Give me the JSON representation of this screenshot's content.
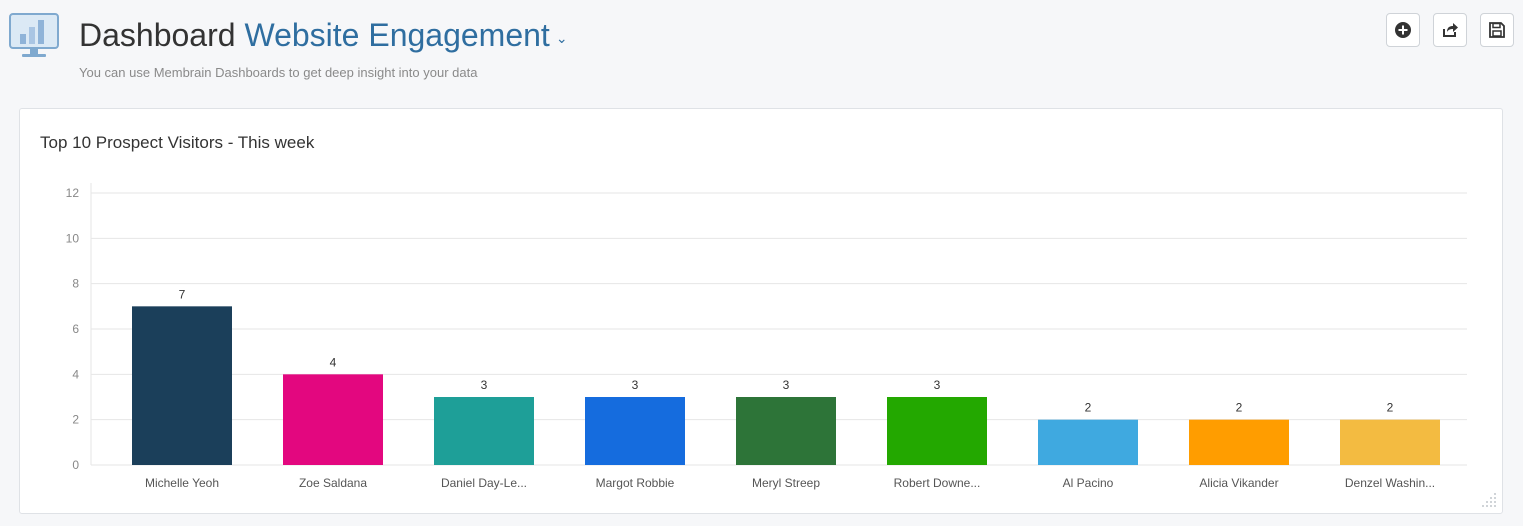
{
  "header": {
    "title_prefix": "Dashboard",
    "title_name": "Website Engagement",
    "subtitle": "You can use Membrain Dashboards to get deep insight into your data",
    "caret": "⌄"
  },
  "toolbar": {
    "add_icon": "plus-circle-icon",
    "share_icon": "share-icon",
    "save_icon": "save-icon"
  },
  "chart_data": {
    "type": "bar",
    "title": "Top 10 Prospect Visitors - This week",
    "xlabel": "",
    "ylabel": "",
    "ylim": [
      0,
      12
    ],
    "yticks": [
      0,
      2,
      4,
      6,
      8,
      10,
      12
    ],
    "grid": true,
    "categories": [
      "Michelle Yeoh",
      "Zoe Saldana",
      "Daniel Day-Le...",
      "Margot Robbie",
      "Meryl Streep",
      "Robert Downe...",
      "Al Pacino",
      "Alicia Vikander",
      "Denzel Washin..."
    ],
    "values": [
      7,
      4,
      3,
      3,
      3,
      3,
      2,
      2,
      2
    ],
    "colors": [
      "#1b3f5a",
      "#e3077f",
      "#1e9f98",
      "#156cde",
      "#2d7438",
      "#23a800",
      "#3fa9e0",
      "#ff9d00",
      "#f3bb41"
    ]
  }
}
